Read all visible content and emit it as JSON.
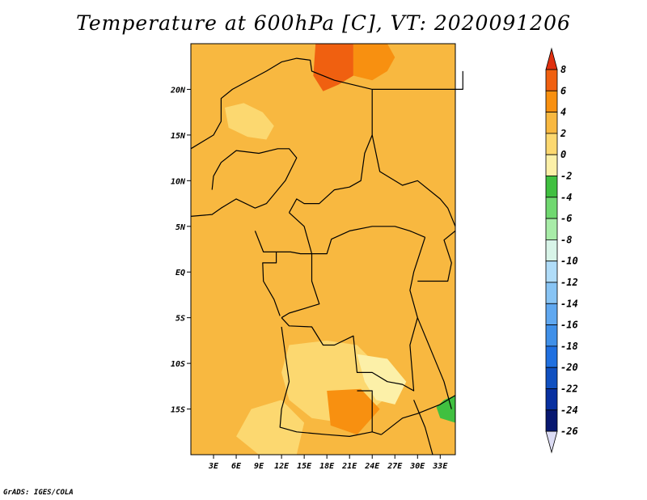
{
  "title": "Temperature at 600hPa [C], VT: 2020091206",
  "footer": "GrADS: IGES/COLA",
  "map": {
    "lon_range": [
      0,
      35
    ],
    "lat_range": [
      -20,
      25
    ],
    "lon_ticks": [
      "3E",
      "6E",
      "9E",
      "12E",
      "15E",
      "18E",
      "21E",
      "24E",
      "27E",
      "30E",
      "33E"
    ],
    "lon_tick_values": [
      3,
      6,
      9,
      12,
      15,
      18,
      21,
      24,
      27,
      30,
      33
    ],
    "lat_ticks": [
      "20N",
      "15N",
      "10N",
      "5N",
      "EQ",
      "5S",
      "10S",
      "15S"
    ],
    "lat_tick_values": [
      20,
      15,
      10,
      5,
      0,
      -5,
      -10,
      -15
    ],
    "background_color": "#f8b840"
  },
  "colorbar": {
    "levels": [
      "8",
      "6",
      "4",
      "2",
      "0",
      "-2",
      "-4",
      "-6",
      "-8",
      "-10",
      "-12",
      "-14",
      "-16",
      "-18",
      "-20",
      "-22",
      "-24",
      "-26"
    ],
    "colors": [
      "#e03010",
      "#f06010",
      "#f89010",
      "#f8b840",
      "#fcd870",
      "#fcf0a8",
      "#40c040",
      "#70d870",
      "#a8eca8",
      "#d8f4e8",
      "#b0dcf8",
      "#88c4f4",
      "#60a8f0",
      "#4090e8",
      "#2070e0",
      "#1050c0",
      "#0830a0",
      "#081870",
      "#dcdcf4",
      "#e03010"
    ]
  },
  "regions": [
    {
      "name": "warm-north",
      "color": "#f06010",
      "points": [
        [
          16.5,
          25
        ],
        [
          21.5,
          25
        ],
        [
          21.5,
          21.5
        ],
        [
          19.5,
          20.5
        ],
        [
          17.5,
          19.8
        ],
        [
          16.2,
          21.5
        ]
      ]
    },
    {
      "name": "warm-northeast",
      "color": "#f89010",
      "points": [
        [
          21.5,
          25
        ],
        [
          26,
          25
        ],
        [
          27,
          23.5
        ],
        [
          26,
          22
        ],
        [
          24,
          21
        ],
        [
          21.5,
          21.5
        ]
      ]
    },
    {
      "name": "light-saharan",
      "color": "#fcd870",
      "points": [
        [
          4.5,
          18
        ],
        [
          7,
          18.5
        ],
        [
          9.5,
          17.5
        ],
        [
          11,
          16
        ],
        [
          10,
          14.5
        ],
        [
          7.5,
          14.8
        ],
        [
          5,
          15.8
        ]
      ]
    },
    {
      "name": "light-south-central",
      "color": "#fcd870",
      "points": [
        [
          13,
          -8
        ],
        [
          18,
          -7.5
        ],
        [
          22,
          -8
        ],
        [
          25,
          -10.5
        ],
        [
          27,
          -13
        ],
        [
          24,
          -15
        ],
        [
          20,
          -16.5
        ],
        [
          16,
          -16
        ],
        [
          13,
          -14
        ],
        [
          12,
          -11
        ]
      ]
    },
    {
      "name": "pale-south",
      "color": "#fcf0a8",
      "points": [
        [
          22,
          -9
        ],
        [
          26,
          -9.5
        ],
        [
          28.5,
          -12
        ],
        [
          27,
          -14.5
        ],
        [
          24.5,
          -14
        ],
        [
          23,
          -12
        ]
      ]
    },
    {
      "name": "light-southwest",
      "color": "#fcd870",
      "points": [
        [
          8,
          -15
        ],
        [
          12,
          -14
        ],
        [
          15,
          -16.5
        ],
        [
          14,
          -20
        ],
        [
          9,
          -20
        ],
        [
          6,
          -18
        ]
      ]
    },
    {
      "name": "warm-south-interior",
      "color": "#f89010",
      "points": [
        [
          18,
          -13
        ],
        [
          22.5,
          -12.8
        ],
        [
          25,
          -15
        ],
        [
          22,
          -17.8
        ],
        [
          18.5,
          -16.8
        ]
      ]
    },
    {
      "name": "green-east",
      "color": "#40c040",
      "points": [
        [
          33.5,
          -14
        ],
        [
          35,
          -13.5
        ],
        [
          35,
          -16.5
        ],
        [
          33,
          -16
        ],
        [
          32.5,
          -14.8
        ]
      ]
    }
  ],
  "borders": [
    [
      [
        0,
        13.5
      ],
      [
        3,
        15
      ],
      [
        4,
        16.5
      ],
      [
        4,
        19
      ],
      [
        5.5,
        20
      ],
      [
        10,
        22
      ],
      [
        12,
        23
      ],
      [
        14,
        23.4
      ],
      [
        15.8,
        23.2
      ],
      [
        16,
        22
      ],
      [
        19,
        21
      ],
      [
        24,
        20
      ],
      [
        24,
        15
      ],
      [
        23,
        13
      ],
      [
        22.5,
        10
      ],
      [
        21,
        9.3
      ],
      [
        19,
        9
      ],
      [
        17,
        7.5
      ],
      [
        15,
        7.5
      ],
      [
        14,
        8
      ],
      [
        13,
        6.5
      ]
    ],
    [
      [
        13,
        6.5
      ],
      [
        15,
        5
      ],
      [
        16,
        2
      ],
      [
        18,
        2
      ],
      [
        18.6,
        3.6
      ],
      [
        21,
        4.5
      ],
      [
        24,
        5
      ],
      [
        27,
        5
      ],
      [
        29,
        4.5
      ],
      [
        31,
        3.8
      ]
    ],
    [
      [
        24,
        20
      ],
      [
        36,
        20
      ],
      [
        36,
        22
      ]
    ],
    [
      [
        24,
        15
      ],
      [
        25,
        11
      ],
      [
        28,
        9.5
      ],
      [
        30,
        10
      ],
      [
        33,
        8
      ],
      [
        34,
        7
      ],
      [
        35,
        5
      ]
    ],
    [
      [
        0,
        6.1
      ],
      [
        2.8,
        6.3
      ],
      [
        4,
        7
      ],
      [
        6,
        8
      ],
      [
        8.5,
        7
      ],
      [
        10,
        7.5
      ],
      [
        11,
        8.5
      ],
      [
        12.5,
        10
      ],
      [
        14,
        12.5
      ],
      [
        13,
        13.5
      ],
      [
        11.5,
        13.5
      ],
      [
        9,
        13
      ],
      [
        6,
        13.3
      ],
      [
        4,
        12
      ],
      [
        3,
        10.5
      ],
      [
        2.8,
        9
      ]
    ],
    [
      [
        8.5,
        4.5
      ],
      [
        9.6,
        2.2
      ],
      [
        11.3,
        2.2
      ],
      [
        11.3,
        1
      ],
      [
        9.5,
        1
      ],
      [
        9.6,
        -1
      ],
      [
        11,
        -3
      ],
      [
        11.8,
        -4.8
      ]
    ],
    [
      [
        11.3,
        2.2
      ],
      [
        13.2,
        2.2
      ],
      [
        14.5,
        2
      ],
      [
        16,
        2
      ],
      [
        16,
        -1
      ],
      [
        17,
        -3.5
      ],
      [
        15,
        -4
      ],
      [
        13,
        -4.5
      ],
      [
        12,
        -5
      ]
    ],
    [
      [
        12,
        -5
      ],
      [
        13,
        -5.9
      ],
      [
        16,
        -6
      ],
      [
        17.5,
        -8
      ],
      [
        19,
        -8
      ],
      [
        21.5,
        -7
      ],
      [
        22,
        -11
      ],
      [
        24,
        -11
      ],
      [
        26,
        -12
      ],
      [
        28,
        -12.3
      ],
      [
        29.5,
        -13
      ],
      [
        29,
        -8
      ],
      [
        30,
        -5
      ],
      [
        29,
        -2
      ],
      [
        29.5,
        0
      ],
      [
        31,
        3.8
      ]
    ],
    [
      [
        12,
        -6
      ],
      [
        12.5,
        -9
      ],
      [
        13,
        -12
      ],
      [
        12,
        -15
      ],
      [
        11.8,
        -17
      ],
      [
        14,
        -17.5
      ],
      [
        18,
        -17.8
      ],
      [
        21,
        -18
      ],
      [
        24,
        -17.5
      ],
      [
        25.2,
        -17.8
      ]
    ],
    [
      [
        22,
        -13
      ],
      [
        24,
        -13
      ],
      [
        24,
        -17.5
      ]
    ],
    [
      [
        25.2,
        -17.8
      ],
      [
        28,
        -16
      ],
      [
        30,
        -15.5
      ],
      [
        33,
        -14.5
      ],
      [
        35,
        -13.5
      ]
    ],
    [
      [
        30,
        -5
      ],
      [
        32,
        -9
      ],
      [
        33.5,
        -12
      ],
      [
        34.5,
        -15
      ]
    ],
    [
      [
        30,
        -1
      ],
      [
        34,
        -1
      ],
      [
        34.5,
        1
      ],
      [
        33.5,
        3.5
      ],
      [
        35,
        4.5
      ]
    ],
    [
      [
        29.5,
        -14
      ],
      [
        31,
        -17
      ],
      [
        32,
        -20
      ]
    ]
  ]
}
